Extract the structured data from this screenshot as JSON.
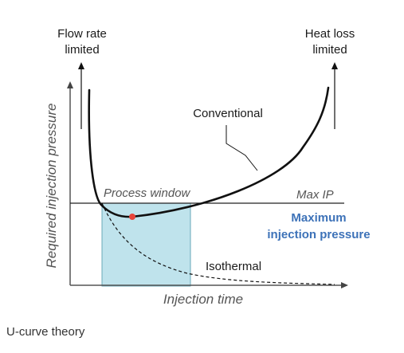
{
  "labels": {
    "flow_rate_line1": "Flow rate",
    "flow_rate_line2": "limited",
    "heat_loss_line1": "Heat loss",
    "heat_loss_line2": "limited",
    "conventional": "Conventional",
    "process_window": "Process window",
    "max_ip": "Max IP",
    "max_pressure_line1": "Maximum",
    "max_pressure_line2": "injection pressure",
    "isothermal": "Isothermal",
    "y_axis": "Required injection pressure",
    "x_axis": "Injection time"
  },
  "caption": "U-curve theory",
  "colors": {
    "window_fill": "#bfe3ec",
    "optimum_point": "#e8443a",
    "accent_text": "#3d72b8",
    "curve": "#111111"
  }
}
